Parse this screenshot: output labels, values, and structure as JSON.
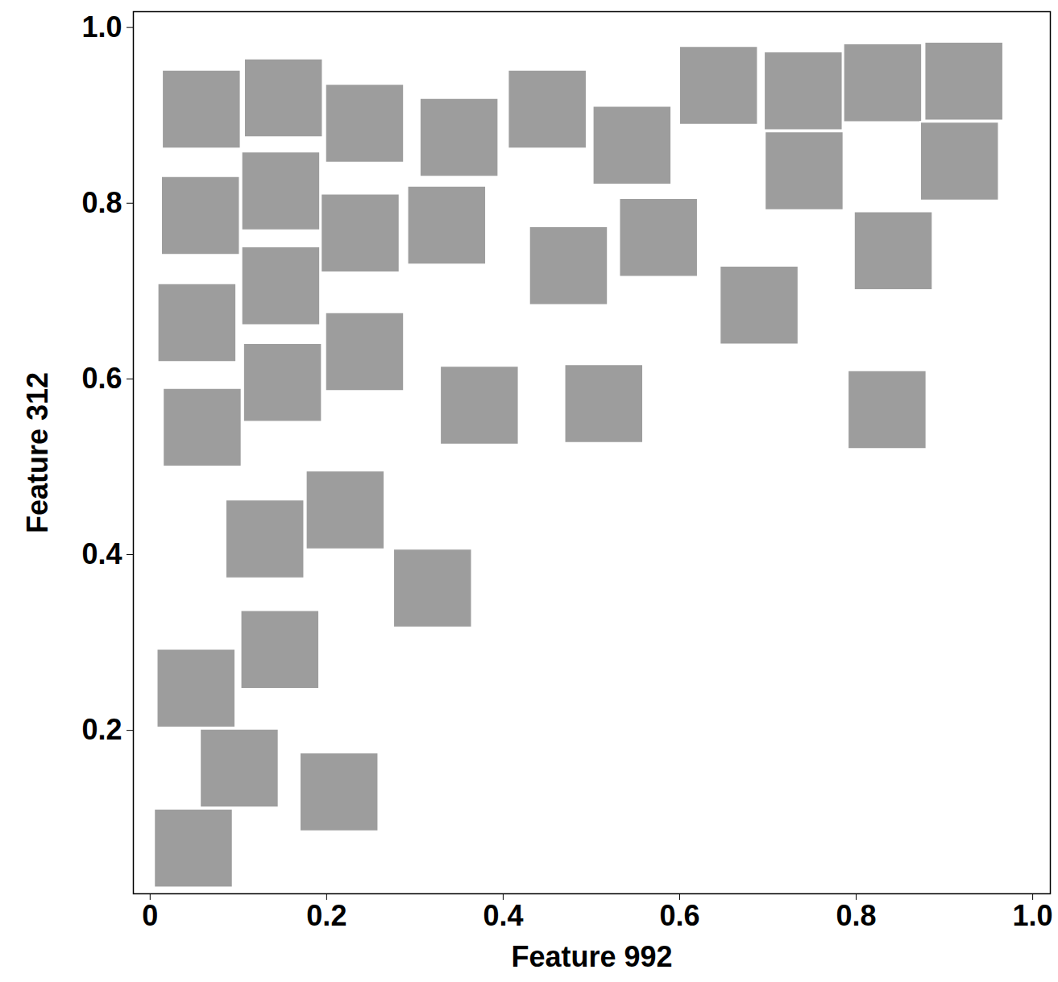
{
  "chart_data": {
    "type": "scatter",
    "x_label": "Feature 992",
    "y_label": "Feature 312",
    "marker": "square",
    "color": "#8c8c8c",
    "xlim": [
      -0.019,
      1.02
    ],
    "ylim": [
      0.014,
      1.018
    ],
    "xticks": [
      0,
      0.2,
      0.4,
      0.6,
      0.8,
      {
        "value": 1,
        "label": "1.0"
      }
    ],
    "yticks": [
      0.2,
      0.4,
      0.6,
      0.8,
      {
        "value": 1,
        "label": "1.0"
      }
    ],
    "grid": false,
    "x": [
      0.058,
      0.151,
      0.243,
      0.35,
      0.45,
      0.546,
      0.644,
      0.74,
      0.83,
      0.922,
      0.741,
      0.917,
      0.057,
      0.148,
      0.238,
      0.336,
      0.474,
      0.576,
      0.842,
      0.148,
      0.053,
      0.69,
      0.243,
      0.15,
      0.059,
      0.373,
      0.514,
      0.835,
      0.13,
      0.221,
      0.32,
      0.147,
      0.052,
      0.101,
      0.214,
      0.049
    ],
    "values": [
      0.907,
      0.92,
      0.891,
      0.875,
      0.907,
      0.866,
      0.934,
      0.928,
      0.937,
      0.939,
      0.837,
      0.848,
      0.786,
      0.814,
      0.766,
      0.775,
      0.729,
      0.761,
      0.746,
      0.706,
      0.664,
      0.684,
      0.631,
      0.596,
      0.545,
      0.57,
      0.572,
      0.565,
      0.418,
      0.451,
      0.362,
      0.292,
      0.248,
      0.157,
      0.13,
      0.066
    ]
  }
}
